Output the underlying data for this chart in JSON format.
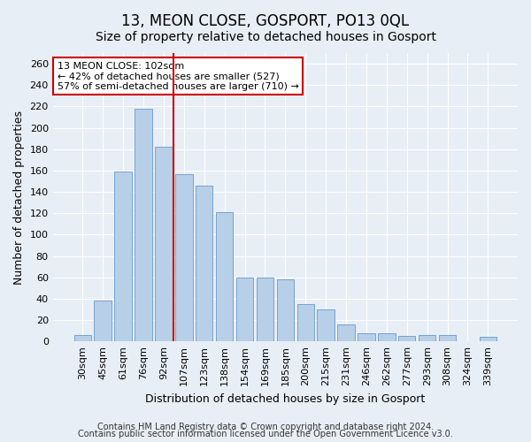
{
  "title": "13, MEON CLOSE, GOSPORT, PO13 0QL",
  "subtitle": "Size of property relative to detached houses in Gosport",
  "xlabel": "Distribution of detached houses by size in Gosport",
  "ylabel": "Number of detached properties",
  "categories": [
    "30sqm",
    "45sqm",
    "61sqm",
    "76sqm",
    "92sqm",
    "107sqm",
    "123sqm",
    "138sqm",
    "154sqm",
    "169sqm",
    "185sqm",
    "200sqm",
    "215sqm",
    "231sqm",
    "246sqm",
    "262sqm",
    "277sqm",
    "293sqm",
    "308sqm",
    "324sqm",
    "339sqm"
  ],
  "values": [
    6,
    38,
    159,
    218,
    182,
    157,
    146,
    121,
    60,
    60,
    58,
    35,
    30,
    16,
    8,
    8,
    5,
    6,
    6,
    0,
    4
  ],
  "bar_color": "#b8cfe8",
  "bar_edge_color": "#6699cc",
  "vline_x": 4.5,
  "vline_color": "#cc0000",
  "annotation_text": "13 MEON CLOSE: 102sqm\n← 42% of detached houses are smaller (527)\n57% of semi-detached houses are larger (710) →",
  "annotation_box_color": "#ffffff",
  "annotation_box_edge": "#cc0000",
  "ylim": [
    0,
    270
  ],
  "yticks": [
    0,
    20,
    40,
    60,
    80,
    100,
    120,
    140,
    160,
    180,
    200,
    220,
    240,
    260
  ],
  "footer1": "Contains HM Land Registry data © Crown copyright and database right 2024.",
  "footer2": "Contains public sector information licensed under the Open Government Licence v3.0.",
  "bg_color": "#e8eef6",
  "plot_bg_color": "#e8eef6",
  "title_fontsize": 12,
  "subtitle_fontsize": 10,
  "axis_label_fontsize": 9,
  "tick_fontsize": 8,
  "footer_fontsize": 7,
  "annotation_fontsize": 8
}
